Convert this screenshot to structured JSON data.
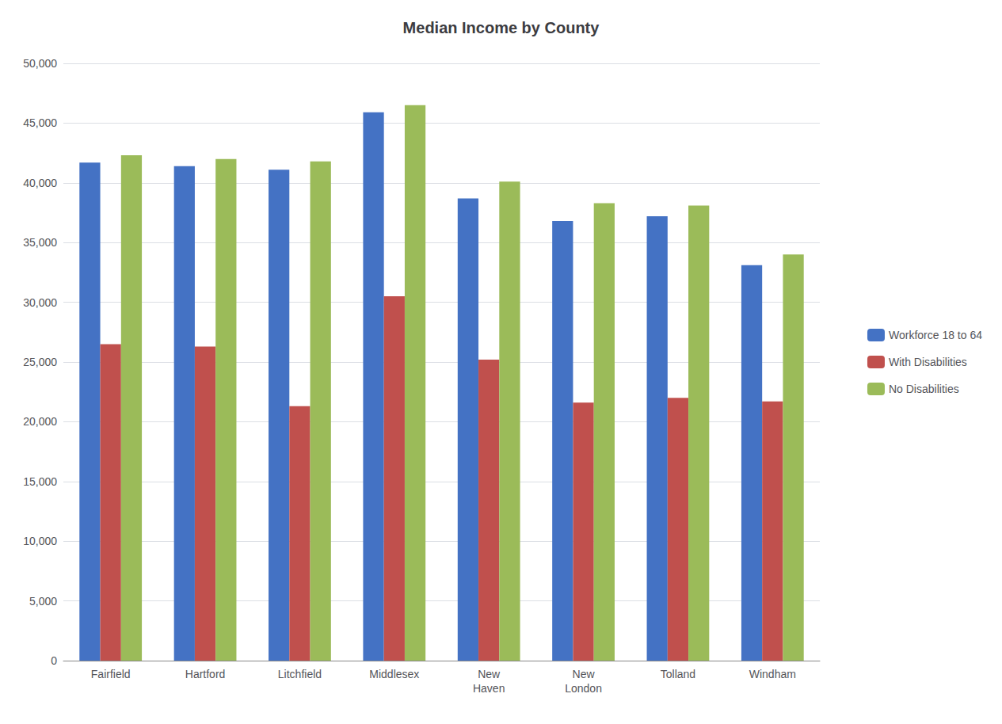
{
  "chart_data": {
    "type": "bar",
    "title": "Median Income by County",
    "categories": [
      "Fairfield",
      "Hartford",
      "Litchfield",
      "Middlesex",
      "New\nHaven",
      "New\nLondon",
      "Tolland",
      "Windham"
    ],
    "series": [
      {
        "name": "Workforce 18 to 64",
        "color": "#4472C4",
        "values": [
          41700,
          41400,
          41100,
          45900,
          38700,
          36800,
          37200,
          33100
        ]
      },
      {
        "name": "With Disabilities",
        "color": "#C0504D",
        "values": [
          26500,
          26300,
          21300,
          30500,
          25200,
          21600,
          22000,
          21700
        ]
      },
      {
        "name": "No Disabilities",
        "color": "#9BBB59",
        "values": [
          42300,
          42000,
          41800,
          46500,
          40100,
          38300,
          38100,
          34000
        ]
      }
    ],
    "ylim": [
      0,
      50000
    ],
    "yticks": [
      0,
      {
        "value": 5000,
        "label": "5,000"
      },
      {
        "value": 10000,
        "label": "10,000"
      },
      {
        "value": 15000,
        "label": "15,000"
      },
      {
        "value": 20000,
        "label": "20,000"
      },
      {
        "value": 25000,
        "label": "25,000"
      },
      {
        "value": 30000,
        "label": "30,000"
      },
      {
        "value": 35000,
        "label": "35,000"
      },
      {
        "value": 40000,
        "label": "40,000"
      },
      {
        "value": 45000,
        "label": "45,000"
      },
      {
        "value": 50000,
        "label": "50,000"
      }
    ],
    "grid": true,
    "legend": "right"
  }
}
